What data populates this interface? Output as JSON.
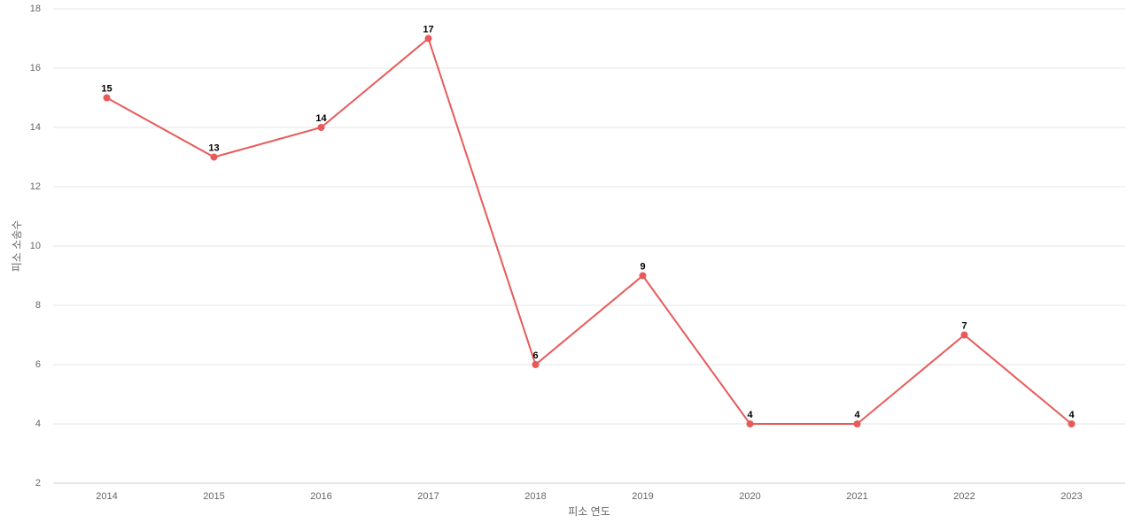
{
  "chart_data": {
    "type": "line",
    "x_label": "피소 연도",
    "y_label": "피소 소송수",
    "categories": [
      "2014",
      "2015",
      "2016",
      "2017",
      "2018",
      "2019",
      "2020",
      "2021",
      "2022",
      "2023"
    ],
    "series": [
      {
        "name": "피소 소송수",
        "color": "#e85a5a",
        "values": [
          15,
          13,
          14,
          17,
          6,
          9,
          4,
          4,
          7,
          4
        ]
      }
    ],
    "ylim": [
      2,
      18
    ],
    "yticks": [
      2,
      4,
      6,
      8,
      10,
      12,
      14,
      16,
      18
    ],
    "grid": true
  }
}
